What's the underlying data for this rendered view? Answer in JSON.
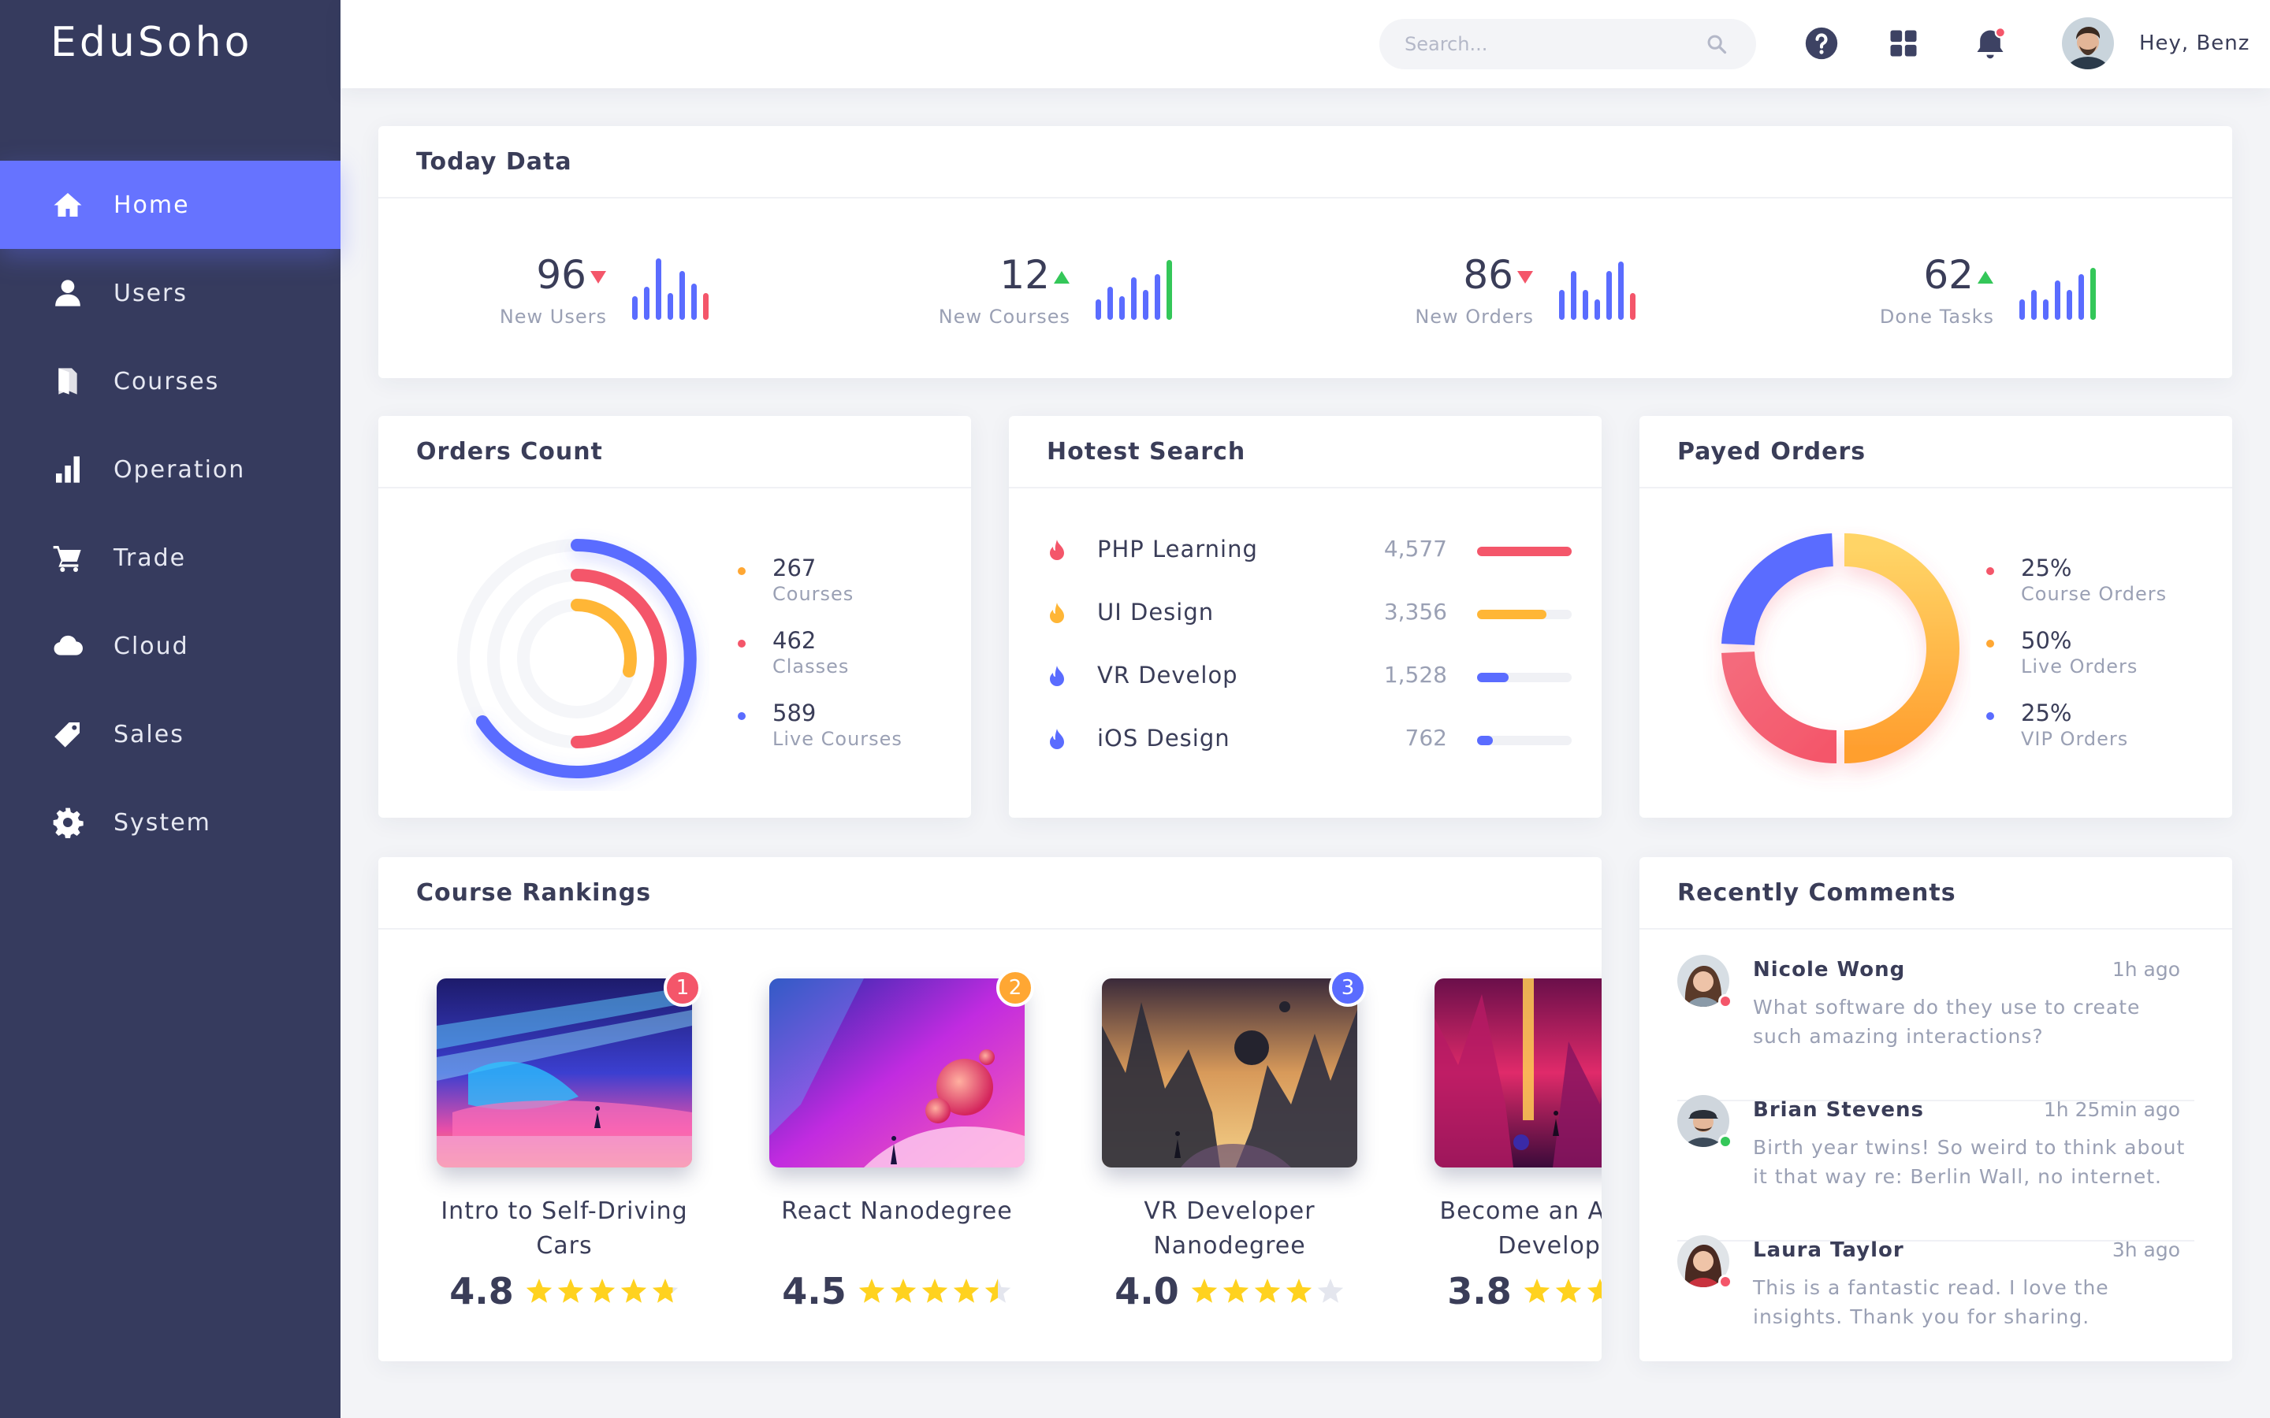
{
  "app": {
    "brand": "EduSoho"
  },
  "sidebar": {
    "items": [
      {
        "label": "Home",
        "icon": "home-icon",
        "active": true
      },
      {
        "label": "Users",
        "icon": "user-icon"
      },
      {
        "label": "Courses",
        "icon": "book-icon"
      },
      {
        "label": "Operation",
        "icon": "bar-chart-icon"
      },
      {
        "label": "Trade",
        "icon": "cart-icon"
      },
      {
        "label": "Cloud",
        "icon": "cloud-icon"
      },
      {
        "label": "Sales",
        "icon": "tag-icon"
      },
      {
        "label": "System",
        "icon": "gear-icon"
      }
    ]
  },
  "topbar": {
    "search_placeholder": "Search...",
    "greeting": "Hey, Benz",
    "icons": [
      "help-icon",
      "apps-grid-icon",
      "bell-icon"
    ]
  },
  "today": {
    "title": "Today Data",
    "stats": [
      {
        "value": "96",
        "label": "New Users",
        "trend": "down"
      },
      {
        "value": "12",
        "label": "New Courses",
        "trend": "up"
      },
      {
        "value": "86",
        "label": "New Orders",
        "trend": "down"
      },
      {
        "value": "62",
        "label": "Done Tasks",
        "trend": "up"
      }
    ]
  },
  "orders": {
    "title": "Orders Count",
    "items": [
      {
        "value": "267",
        "label": "Courses",
        "color": "#ffa733"
      },
      {
        "value": "462",
        "label": "Classes",
        "color": "#f4566a"
      },
      {
        "value": "589",
        "label": "Live Courses",
        "color": "#5a6cff"
      }
    ]
  },
  "hottest": {
    "title": "Hotest Search",
    "items": [
      {
        "name": "PHP Learning",
        "count": "4,577",
        "level": 1.0,
        "color": "#f4566a"
      },
      {
        "name": "UI Design",
        "count": "3,356",
        "level": 0.73,
        "color": "#ffb636"
      },
      {
        "name": "VR Develop",
        "count": "1,528",
        "level": 0.33,
        "color": "#5a6cff"
      },
      {
        "name": "iOS Design",
        "count": "762",
        "level": 0.17,
        "color": "#5a6cff"
      }
    ]
  },
  "payed": {
    "title": "Payed Orders",
    "items": [
      {
        "value": "25%",
        "label": "Course Orders",
        "color": "#f4566a"
      },
      {
        "value": "50%",
        "label": "Live Orders",
        "color": "#ffa733"
      },
      {
        "value": "25%",
        "label": "VIP Orders",
        "color": "#5a6cff"
      }
    ]
  },
  "rankings": {
    "title": "Course Rankings",
    "courses": [
      {
        "rank": "1",
        "title": "Intro to Self-Driving Cars",
        "rating": "4.8",
        "rating_value": 4.8,
        "badge_color": "#f4566a"
      },
      {
        "rank": "2",
        "title": "React Nanodegree",
        "rating": "4.5",
        "rating_value": 4.5,
        "badge_color": "#ffa733"
      },
      {
        "rank": "3",
        "title": "VR Developer Nanodegree",
        "rating": "4.0",
        "rating_value": 4.0,
        "badge_color": "#5a6cff"
      },
      {
        "rank": "",
        "title": "Become an Android Developer",
        "rating": "3.8",
        "rating_value": 3.8,
        "badge_color": ""
      }
    ]
  },
  "comments": {
    "title": "Recently Comments",
    "items": [
      {
        "name": "Nicole Wong",
        "time": "1h ago",
        "text": "What software do they use to create such amazing interactions?",
        "status_color": "#f4566a"
      },
      {
        "name": "Brian Stevens",
        "time": "1h 25min ago",
        "text": "Birth year twins! So weird to think about it that way re: Berlin Wall, no internet.",
        "status_color": "#34c759"
      },
      {
        "name": "Laura Taylor",
        "time": "3h ago",
        "text": "This is a fantastic read. I love the insights. Thank you for sharing.",
        "status_color": "#f4566a"
      }
    ]
  }
}
